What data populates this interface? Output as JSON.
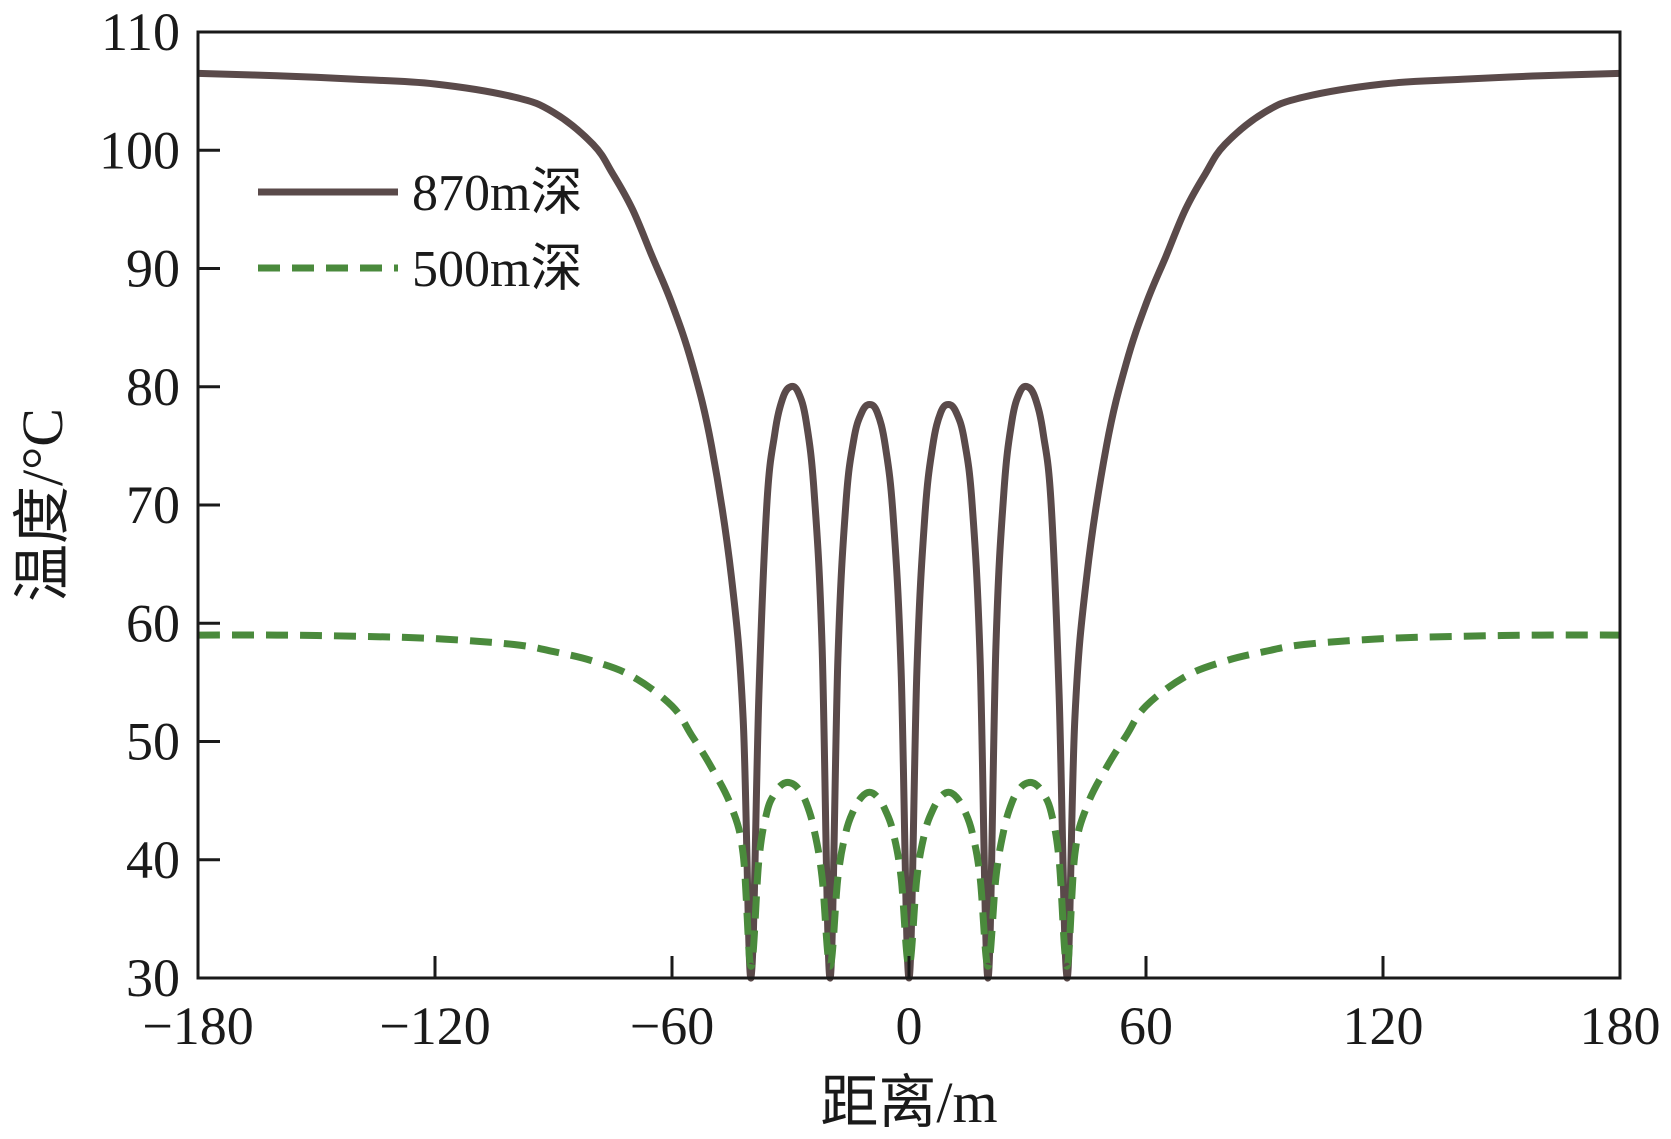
{
  "chart_data": {
    "type": "line",
    "xlabel": "距离/m",
    "ylabel": "温度/°C",
    "xlim": [
      -180,
      180
    ],
    "ylim": [
      30,
      110
    ],
    "xticks": [
      -180,
      -120,
      -60,
      0,
      60,
      120,
      180
    ],
    "xtick_labels": [
      "−180",
      "−120",
      "−60",
      "0",
      "60",
      "120",
      "180"
    ],
    "yticks": [
      30,
      40,
      50,
      60,
      70,
      80,
      90,
      100,
      110
    ],
    "ytick_labels": [
      "30",
      "40",
      "50",
      "60",
      "70",
      "80",
      "90",
      "100",
      "110"
    ],
    "grid": false,
    "legend_position": "upper-left",
    "series": [
      {
        "name": "870m深",
        "style": "solid",
        "color": "#5a4a4a",
        "x": [
          -180,
          -160,
          -140,
          -120,
          -100,
          -90,
          -80,
          -75,
          -70,
          -65,
          -60,
          -55,
          -50,
          -45,
          -42,
          -40,
          -38,
          -36,
          -34,
          -32,
          -30,
          -28,
          -26,
          -24,
          -22,
          -20,
          -18,
          -16,
          -14,
          -12,
          -10,
          -8,
          -6,
          -4,
          -2,
          0,
          2,
          4,
          6,
          8,
          10,
          12,
          14,
          16,
          18,
          20,
          22,
          24,
          26,
          28,
          30,
          32,
          34,
          36,
          38,
          40,
          42,
          45,
          50,
          55,
          60,
          65,
          70,
          75,
          80,
          90,
          100,
          120,
          140,
          160,
          180
        ],
        "y": [
          106.5,
          106.3,
          106.0,
          105.6,
          104.5,
          103.2,
          100.5,
          98.0,
          95.0,
          91.0,
          87.0,
          82.0,
          75.0,
          64.0,
          52.0,
          30.0,
          54.0,
          70.0,
          76.0,
          79.0,
          80.0,
          79.5,
          77.0,
          71.0,
          58.0,
          30.0,
          57.0,
          70.0,
          75.5,
          77.8,
          78.5,
          77.8,
          75.0,
          69.0,
          56.0,
          30.0,
          56.0,
          69.0,
          75.0,
          77.8,
          78.5,
          77.8,
          75.5,
          70.0,
          57.0,
          30.0,
          58.0,
          71.0,
          77.0,
          79.5,
          80.0,
          79.0,
          76.0,
          70.0,
          54.0,
          30.0,
          52.0,
          64.0,
          75.0,
          82.0,
          87.0,
          91.0,
          95.0,
          98.0,
          100.5,
          103.2,
          104.5,
          105.6,
          106.0,
          106.3,
          106.5
        ]
      },
      {
        "name": "500m深",
        "style": "dashed",
        "color": "#4a8a3c",
        "x": [
          -180,
          -160,
          -140,
          -120,
          -100,
          -90,
          -80,
          -70,
          -60,
          -55,
          -50,
          -45,
          -42,
          -40,
          -38,
          -36,
          -34,
          -32,
          -30,
          -28,
          -26,
          -24,
          -22,
          -20,
          -18,
          -16,
          -14,
          -12,
          -10,
          -8,
          -6,
          -4,
          -2,
          0,
          2,
          4,
          6,
          8,
          10,
          12,
          14,
          16,
          18,
          20,
          22,
          24,
          26,
          28,
          30,
          32,
          34,
          36,
          38,
          40,
          42,
          45,
          50,
          55,
          60,
          70,
          80,
          90,
          100,
          120,
          140,
          160,
          180
        ],
        "y": [
          59.0,
          59.0,
          58.9,
          58.7,
          58.2,
          57.6,
          56.8,
          55.5,
          53.0,
          50.5,
          47.8,
          44.5,
          40.5,
          31.0,
          40.0,
          44.0,
          45.6,
          46.4,
          46.5,
          46.0,
          44.8,
          42.5,
          38.5,
          31.0,
          38.5,
          42.3,
          44.2,
          45.3,
          45.7,
          45.3,
          44.2,
          42.3,
          38.5,
          31.0,
          38.5,
          42.3,
          44.2,
          45.3,
          45.7,
          45.3,
          44.2,
          42.3,
          38.5,
          31.0,
          38.5,
          42.5,
          44.8,
          46.0,
          46.5,
          46.4,
          45.6,
          44.0,
          40.0,
          31.0,
          40.5,
          44.5,
          47.8,
          50.5,
          53.0,
          55.5,
          56.8,
          57.6,
          58.2,
          58.7,
          58.9,
          59.0,
          59.0
        ]
      }
    ]
  }
}
